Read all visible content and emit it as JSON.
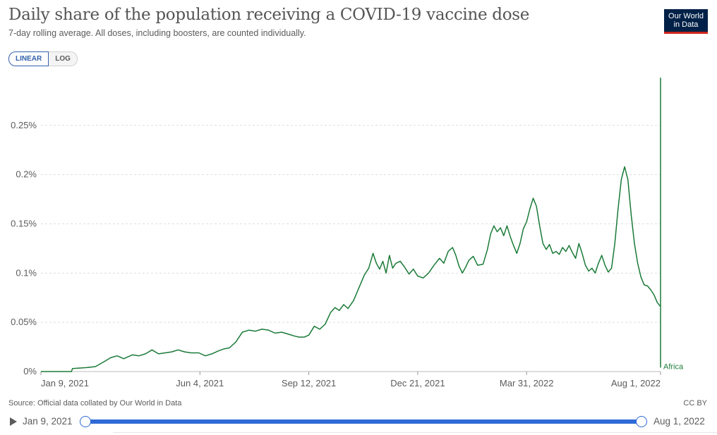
{
  "header": {
    "title": "Daily share of the population receiving a COVID-19 vaccine dose",
    "subtitle": "7-day rolling average. All doses, including boosters, are counted individually.",
    "logo_line1": "Our World",
    "logo_line2": "in Data"
  },
  "controls": {
    "scale_linear": "LINEAR",
    "scale_log": "LOG",
    "active_scale": "linear"
  },
  "footer": {
    "source": "Source: Official data collated by Our World in Data",
    "license": "CC BY"
  },
  "timeline": {
    "start_label": "Jan 9, 2021",
    "end_label": "Aug 1, 2022"
  },
  "colors": {
    "series": "#1a7a38",
    "grid": "#dddddd",
    "axis_text": "#5b5b5b",
    "accent": "#2f6ad6"
  },
  "chart_data": {
    "type": "line",
    "title": "Daily share of the population receiving a COVID-19 vaccine dose",
    "subtitle": "7-day rolling average. All doses, including boosters, are counted individually.",
    "x_axis": {
      "type": "date",
      "range": [
        "2021-01-09",
        "2022-08-01"
      ],
      "tick_dates": [
        "2021-01-09",
        "2021-06-04",
        "2021-09-12",
        "2021-12-21",
        "2022-03-31",
        "2022-08-01"
      ],
      "tick_labels": [
        "Jan 9, 2021",
        "Jun 4, 2021",
        "Sep 12, 2021",
        "Dec 21, 2021",
        "Mar 31, 2022",
        "Aug 1, 2022"
      ]
    },
    "y_axis": {
      "range": [
        0,
        0.3
      ],
      "unit": "%",
      "ticks": [
        0,
        0.05,
        0.1,
        0.15,
        0.2,
        0.25
      ],
      "tick_labels": [
        "0%",
        "0.05%",
        "0.1%",
        "0.15%",
        "0.2%",
        "0.25%"
      ],
      "grid": true
    },
    "legend": "end-of-line label",
    "series": [
      {
        "name": "Africa",
        "points": [
          [
            "2021-01-09",
            0
          ],
          [
            "2021-02-06",
            0
          ],
          [
            "2021-02-07",
            0.003
          ],
          [
            "2021-02-20",
            0.004
          ],
          [
            "2021-02-28",
            0.005
          ],
          [
            "2021-03-08",
            0.01
          ],
          [
            "2021-03-14",
            0.014
          ],
          [
            "2021-03-20",
            0.016
          ],
          [
            "2021-03-26",
            0.013
          ],
          [
            "2021-04-03",
            0.017
          ],
          [
            "2021-04-09",
            0.016
          ],
          [
            "2021-04-15",
            0.018
          ],
          [
            "2021-04-21",
            0.022
          ],
          [
            "2021-04-27",
            0.018
          ],
          [
            "2021-05-03",
            0.019
          ],
          [
            "2021-05-09",
            0.02
          ],
          [
            "2021-05-15",
            0.022
          ],
          [
            "2021-05-21",
            0.02
          ],
          [
            "2021-05-27",
            0.019
          ],
          [
            "2021-06-03",
            0.019
          ],
          [
            "2021-06-09",
            0.016
          ],
          [
            "2021-06-15",
            0.018
          ],
          [
            "2021-06-21",
            0.021
          ],
          [
            "2021-06-26",
            0.023
          ],
          [
            "2021-07-01",
            0.024
          ],
          [
            "2021-07-07",
            0.03
          ],
          [
            "2021-07-13",
            0.04
          ],
          [
            "2021-07-19",
            0.042
          ],
          [
            "2021-07-25",
            0.041
          ],
          [
            "2021-07-31",
            0.043
          ],
          [
            "2021-08-06",
            0.042
          ],
          [
            "2021-08-12",
            0.039
          ],
          [
            "2021-08-18",
            0.04
          ],
          [
            "2021-08-24",
            0.038
          ],
          [
            "2021-08-30",
            0.036
          ],
          [
            "2021-09-03",
            0.035
          ],
          [
            "2021-09-08",
            0.035
          ],
          [
            "2021-09-12",
            0.037
          ],
          [
            "2021-09-17",
            0.046
          ],
          [
            "2021-09-22",
            0.043
          ],
          [
            "2021-09-27",
            0.048
          ],
          [
            "2021-10-02",
            0.06
          ],
          [
            "2021-10-06",
            0.065
          ],
          [
            "2021-10-10",
            0.062
          ],
          [
            "2021-10-14",
            0.068
          ],
          [
            "2021-10-18",
            0.064
          ],
          [
            "2021-10-23",
            0.072
          ],
          [
            "2021-10-28",
            0.085
          ],
          [
            "2021-11-02",
            0.098
          ],
          [
            "2021-11-06",
            0.105
          ],
          [
            "2021-11-10",
            0.12
          ],
          [
            "2021-11-13",
            0.11
          ],
          [
            "2021-11-16",
            0.104
          ],
          [
            "2021-11-19",
            0.112
          ],
          [
            "2021-11-22",
            0.1
          ],
          [
            "2021-11-25",
            0.118
          ],
          [
            "2021-11-28",
            0.105
          ],
          [
            "2021-12-01",
            0.11
          ],
          [
            "2021-12-05",
            0.112
          ],
          [
            "2021-12-09",
            0.106
          ],
          [
            "2021-12-13",
            0.099
          ],
          [
            "2021-12-17",
            0.104
          ],
          [
            "2021-12-21",
            0.097
          ],
          [
            "2021-12-26",
            0.095
          ],
          [
            "2021-12-31",
            0.1
          ],
          [
            "2022-01-05",
            0.108
          ],
          [
            "2022-01-10",
            0.115
          ],
          [
            "2022-01-14",
            0.11
          ],
          [
            "2022-01-18",
            0.122
          ],
          [
            "2022-01-22",
            0.126
          ],
          [
            "2022-01-25",
            0.118
          ],
          [
            "2022-01-28",
            0.107
          ],
          [
            "2022-01-31",
            0.1
          ],
          [
            "2022-02-03",
            0.106
          ],
          [
            "2022-02-06",
            0.113
          ],
          [
            "2022-02-10",
            0.117
          ],
          [
            "2022-02-14",
            0.108
          ],
          [
            "2022-02-19",
            0.109
          ],
          [
            "2022-02-23",
            0.124
          ],
          [
            "2022-02-26",
            0.14
          ],
          [
            "2022-03-01",
            0.148
          ],
          [
            "2022-03-04",
            0.142
          ],
          [
            "2022-03-07",
            0.146
          ],
          [
            "2022-03-10",
            0.138
          ],
          [
            "2022-03-13",
            0.148
          ],
          [
            "2022-03-16",
            0.137
          ],
          [
            "2022-03-19",
            0.128
          ],
          [
            "2022-03-22",
            0.12
          ],
          [
            "2022-03-25",
            0.13
          ],
          [
            "2022-03-28",
            0.145
          ],
          [
            "2022-03-31",
            0.152
          ],
          [
            "2022-04-03",
            0.165
          ],
          [
            "2022-04-06",
            0.176
          ],
          [
            "2022-04-09",
            0.168
          ],
          [
            "2022-04-12",
            0.148
          ],
          [
            "2022-04-15",
            0.13
          ],
          [
            "2022-04-18",
            0.124
          ],
          [
            "2022-04-21",
            0.129
          ],
          [
            "2022-04-24",
            0.12
          ],
          [
            "2022-04-27",
            0.122
          ],
          [
            "2022-04-30",
            0.119
          ],
          [
            "2022-05-03",
            0.126
          ],
          [
            "2022-05-06",
            0.122
          ],
          [
            "2022-05-09",
            0.128
          ],
          [
            "2022-05-12",
            0.121
          ],
          [
            "2022-05-15",
            0.115
          ],
          [
            "2022-05-18",
            0.13
          ],
          [
            "2022-05-21",
            0.12
          ],
          [
            "2022-05-24",
            0.108
          ],
          [
            "2022-05-27",
            0.102
          ],
          [
            "2022-05-30",
            0.105
          ],
          [
            "2022-06-02",
            0.1
          ],
          [
            "2022-06-05",
            0.11
          ],
          [
            "2022-06-08",
            0.118
          ],
          [
            "2022-06-11",
            0.108
          ],
          [
            "2022-06-14",
            0.101
          ],
          [
            "2022-06-17",
            0.105
          ],
          [
            "2022-06-20",
            0.13
          ],
          [
            "2022-06-23",
            0.165
          ],
          [
            "2022-06-26",
            0.195
          ],
          [
            "2022-06-29",
            0.208
          ],
          [
            "2022-07-02",
            0.195
          ],
          [
            "2022-07-05",
            0.16
          ],
          [
            "2022-07-08",
            0.13
          ],
          [
            "2022-07-11",
            0.11
          ],
          [
            "2022-07-14",
            0.096
          ],
          [
            "2022-07-17",
            0.088
          ],
          [
            "2022-07-20",
            0.087
          ],
          [
            "2022-07-23",
            0.083
          ],
          [
            "2022-07-26",
            0.078
          ],
          [
            "2022-07-29",
            0.07
          ],
          [
            "2022-08-01",
            0.066
          ],
          [
            "2022-08-01",
            0.068
          ],
          [
            "2022-08-01",
            0.071
          ],
          [
            "2022-08-01",
            0.08
          ],
          [
            "2022-08-01",
            0.085
          ],
          [
            "2022-08-01",
            0.088
          ],
          [
            "2022-08-01",
            0.086
          ],
          [
            "2022-08-01",
            0.08
          ],
          [
            "2022-08-01",
            0.07
          ],
          [
            "2022-08-01",
            0.06
          ],
          [
            "2022-08-01",
            0.05
          ],
          [
            "2022-08-01",
            0.046
          ],
          [
            "2022-08-01",
            0.045
          ],
          [
            "2022-08-01",
            0.046
          ],
          [
            "2022-08-01",
            0.048
          ],
          [
            "2022-08-01",
            0.07
          ],
          [
            "2022-08-01",
            0.105
          ],
          [
            "2022-08-01",
            0.135
          ],
          [
            "2022-08-01",
            0.133
          ],
          [
            "2022-08-01",
            0.105
          ],
          [
            "2022-08-01",
            0.07
          ],
          [
            "2022-08-01",
            0.057
          ],
          [
            "2022-08-01",
            0.056
          ],
          [
            "2022-08-01",
            0.055
          ],
          [
            "2022-08-01",
            0.06
          ],
          [
            "2022-08-01",
            0.068
          ],
          [
            "2022-08-01",
            0.08
          ],
          [
            "2022-08-01",
            0.095
          ],
          [
            "2022-08-01",
            0.107
          ],
          [
            "2022-08-01",
            0.095
          ],
          [
            "2022-08-01",
            0.082
          ],
          [
            "2022-08-01",
            0.07
          ],
          [
            "2022-08-01",
            0.061
          ],
          [
            "2022-08-01",
            0.065
          ],
          [
            "2022-08-01",
            0.068
          ],
          [
            "2022-08-01",
            0.071
          ],
          [
            "2022-08-01",
            0.073
          ],
          [
            "2022-08-01",
            0.078
          ],
          [
            "2022-08-01",
            0.077
          ],
          [
            "2022-08-01",
            0.075
          ],
          [
            "2022-08-01",
            0.074
          ],
          [
            "2022-08-01",
            0.09
          ],
          [
            "2022-08-01",
            0.17
          ],
          [
            "2022-08-01",
            0.26
          ],
          [
            "2022-08-01",
            0.298
          ],
          [
            "2022-08-01",
            0.27
          ],
          [
            "2022-08-01",
            0.2
          ],
          [
            "2022-08-01",
            0.14
          ],
          [
            "2022-08-01",
            0.115
          ],
          [
            "2022-08-01",
            0.105
          ],
          [
            "2022-08-01",
            0.095
          ],
          [
            "2022-08-01",
            0.085
          ],
          [
            "2022-08-01",
            0.08
          ],
          [
            "2022-08-01",
            0.079
          ],
          [
            "2022-08-01",
            0.078
          ],
          [
            "2022-08-01",
            0.08
          ],
          [
            "2022-08-01",
            0.07
          ],
          [
            "2022-08-01",
            0.065
          ],
          [
            "2022-08-01",
            0.058
          ],
          [
            "2022-08-01",
            0.04
          ],
          [
            "2022-08-01",
            0.018
          ],
          [
            "2022-08-01",
            0.015
          ],
          [
            "2022-08-01",
            0.004
          ],
          [
            "2022-08-01",
            0.004
          ]
        ]
      }
    ]
  }
}
